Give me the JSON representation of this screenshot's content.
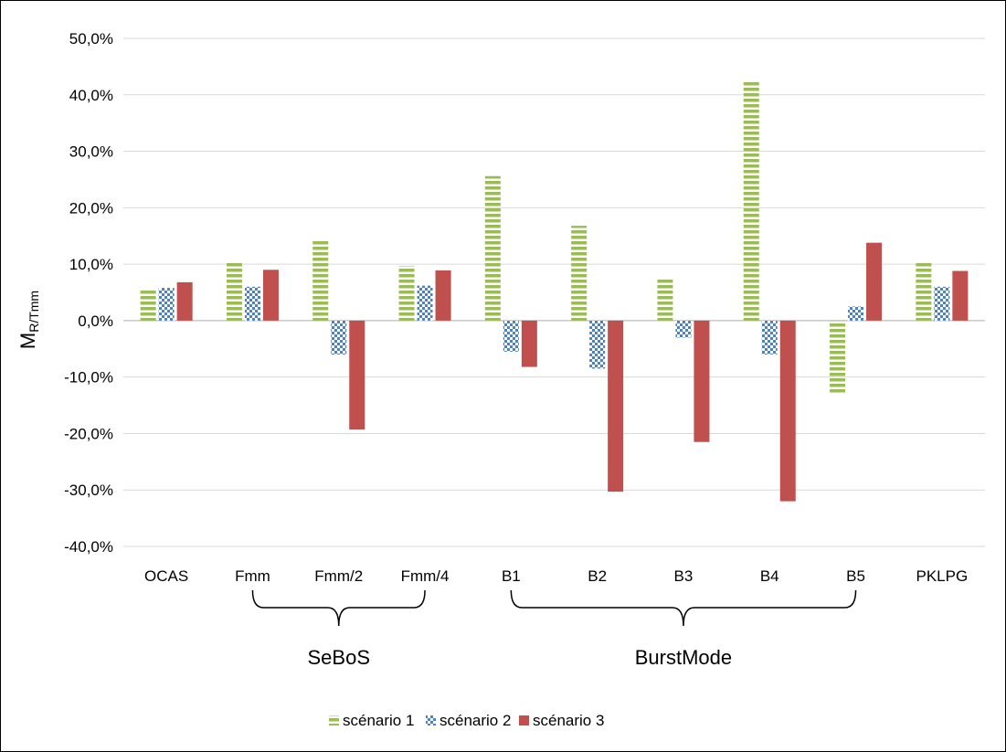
{
  "chart_data": {
    "type": "bar",
    "ylabel": "M",
    "ylabel_sub": "R/Tmm",
    "ylim": [
      -0.4,
      0.5
    ],
    "y_ticks": [
      "-40,0%",
      "-30,0%",
      "-20,0%",
      "-10,0%",
      "0,0%",
      "10,0%",
      "20,0%",
      "30,0%",
      "40,0%",
      "50,0%"
    ],
    "categories": [
      "OCAS",
      "Fmm",
      "Fmm/2",
      "Fmm/4",
      "B1",
      "B2",
      "B3",
      "B4",
      "B5",
      "PKLPG"
    ],
    "groups": [
      {
        "label": "SeBoS",
        "from": 1,
        "to": 3
      },
      {
        "label": "BurstMode",
        "from": 4,
        "to": 8
      }
    ],
    "series": [
      {
        "name": "scénario 1",
        "color": "#9BBB59",
        "pattern": "horizontal-stripes",
        "values": [
          0.055,
          0.105,
          0.143,
          0.097,
          0.256,
          0.168,
          0.073,
          0.425,
          -0.13,
          0.104
        ]
      },
      {
        "name": "scénario 2",
        "color": "#4F81BD",
        "pattern": "checker",
        "values": [
          0.058,
          0.06,
          -0.06,
          0.062,
          -0.055,
          -0.085,
          -0.03,
          -0.06,
          0.025,
          0.06
        ]
      },
      {
        "name": "scénario 3",
        "color": "#C0504D",
        "pattern": "solid",
        "values": [
          0.068,
          0.09,
          -0.193,
          0.089,
          -0.082,
          -0.303,
          -0.215,
          -0.32,
          0.138,
          0.088
        ]
      }
    ],
    "grid": true,
    "legend": "bottom"
  }
}
